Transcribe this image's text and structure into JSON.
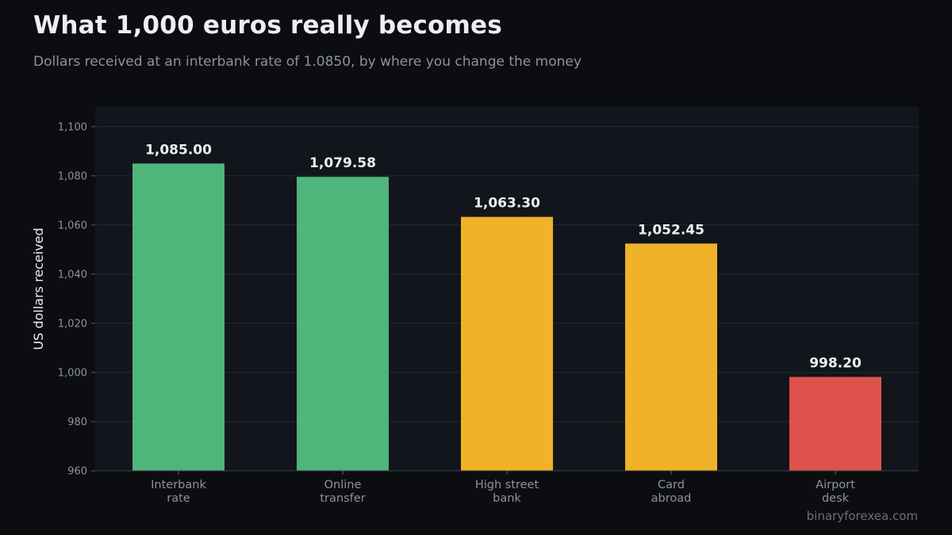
{
  "header": {
    "title": "What 1,000 euros really becomes",
    "subtitle": "Dollars received at an interbank rate of 1.0850, by where you change the money"
  },
  "source": "binaryforexea.com",
  "colors": {
    "background": "#0c0d10",
    "plot_background": "#12151c",
    "grid": "#262a31",
    "tick_text": "#8e939c",
    "label_text": "#eceef2",
    "green": "#4fb57a",
    "amber": "#efb229",
    "red": "#de524c"
  },
  "chart_data": {
    "type": "bar",
    "title": "What 1,000 euros really becomes",
    "subtitle": "Dollars received at an interbank rate of 1.0850, by where you change the money",
    "xlabel": "",
    "ylabel": "US dollars received",
    "ylim": [
      960,
      1108
    ],
    "yticks": [
      960,
      980,
      1000,
      1020,
      1040,
      1060,
      1080,
      1100
    ],
    "ytick_labels": [
      "960",
      "980",
      "1,000",
      "1,020",
      "1,040",
      "1,060",
      "1,080",
      "1,100"
    ],
    "grid": true,
    "categories": [
      [
        "Interbank",
        "rate"
      ],
      [
        "Online",
        "transfer"
      ],
      [
        "High street",
        "bank"
      ],
      [
        "Card",
        "abroad"
      ],
      [
        "Airport",
        "desk"
      ]
    ],
    "values": [
      1085.0,
      1079.58,
      1063.3,
      1052.45,
      998.2
    ],
    "value_labels": [
      "1,085.00",
      "1,079.58",
      "1,063.30",
      "1,052.45",
      "998.20"
    ],
    "bar_colors": [
      "#4fb57a",
      "#4fb57a",
      "#efb229",
      "#efb229",
      "#de524c"
    ]
  }
}
